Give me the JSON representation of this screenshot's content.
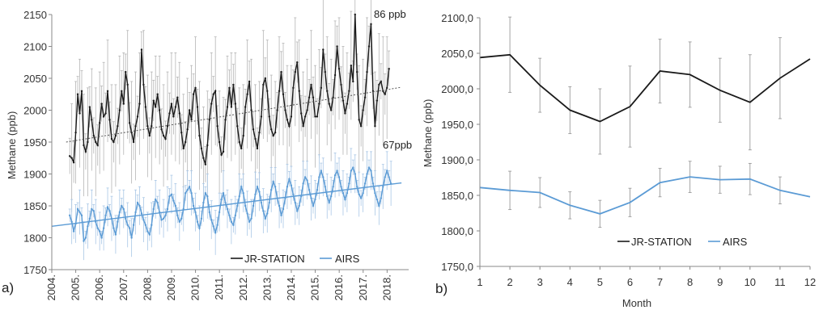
{
  "chart_data": [
    {
      "type": "line",
      "panel_label": "a)",
      "ylabel": "Methane (ppb)",
      "xlabel": "",
      "ylim": [
        1750,
        2150
      ],
      "y_ticks": [
        "1750",
        "1800",
        "1850",
        "1900",
        "1950",
        "2000",
        "2050",
        "2100",
        "2150"
      ],
      "xlim": [
        2004.0,
        2018.9
      ],
      "x_ticks": [
        "2004.",
        "2005.",
        "2006.",
        "2007.",
        "2008.",
        "2009.",
        "2010.",
        "2011.",
        "2012.",
        "2013.",
        "2014.",
        "2015.",
        "2016.",
        "2017.",
        "2018."
      ],
      "grid": false,
      "legend": "bottom-center",
      "annotations": [
        "86 ppb",
        "67ppb"
      ],
      "series": [
        {
          "name": "JR-STATION",
          "color": "#1a1a1a",
          "x_start": 2004.75,
          "step": 0.0833,
          "values": [
            1928,
            1925,
            1918,
            1965,
            2025,
            1995,
            2030,
            1945,
            1935,
            1950,
            2005,
            1985,
            1960,
            1950,
            1945,
            1980,
            2010,
            1990,
            1995,
            2030,
            1985,
            1955,
            1950,
            1960,
            1975,
            2000,
            2030,
            2010,
            2060,
            2040,
            1980,
            1965,
            1950,
            1975,
            1990,
            2010,
            2095,
            2040,
            2005,
            1975,
            1960,
            1975,
            2015,
            2005,
            2025,
            2000,
            1970,
            1960,
            1955,
            1975,
            1995,
            2010,
            1990,
            2005,
            2020,
            1995,
            1965,
            1940,
            1950,
            1970,
            2000,
            1985,
            2025,
            2035,
            2005,
            1960,
            1940,
            1925,
            1915,
            1945,
            1985,
            2010,
            2025,
            2030,
            1975,
            1950,
            1930,
            1935,
            1985,
            2005,
            2035,
            2005,
            2040,
            2010,
            1975,
            1950,
            1940,
            1960,
            2005,
            2025,
            2045,
            2000,
            1970,
            1955,
            1940,
            1965,
            1990,
            2040,
            2050,
            2030,
            1990,
            1970,
            1960,
            1965,
            2000,
            2030,
            2060,
            2025,
            2000,
            1985,
            1975,
            1990,
            2035,
            2060,
            2075,
            2030,
            1995,
            1975,
            1990,
            2000,
            2020,
            2040,
            2020,
            1990,
            1990,
            2010,
            2035,
            2095,
            2060,
            2030,
            2010,
            2000,
            2020,
            2055,
            2100,
            2065,
            2040,
            2015,
            1995,
            2010,
            2030,
            2070,
            2045,
            2150,
            2060,
            1985,
            1975,
            2000,
            2020,
            2060,
            2100,
            2135,
            2030,
            1975,
            2015,
            2040,
            2045,
            2030,
            2025,
            2035,
            2065
          ]
        },
        {
          "name": "AIRS",
          "color": "#5b9bd5",
          "x_start": 2004.75,
          "step": 0.0833,
          "values": [
            1835,
            1825,
            1810,
            1822,
            1845,
            1840,
            1835,
            1795,
            1800,
            1818,
            1830,
            1845,
            1842,
            1825,
            1815,
            1810,
            1800,
            1815,
            1835,
            1848,
            1842,
            1830,
            1815,
            1805,
            1825,
            1840,
            1850,
            1845,
            1830,
            1820,
            1815,
            1800,
            1820,
            1840,
            1855,
            1850,
            1838,
            1828,
            1820,
            1810,
            1805,
            1820,
            1845,
            1860,
            1855,
            1840,
            1828,
            1830,
            1835,
            1845,
            1865,
            1868,
            1858,
            1850,
            1835,
            1825,
            1830,
            1845,
            1870,
            1875,
            1880,
            1870,
            1850,
            1840,
            1825,
            1815,
            1830,
            1855,
            1870,
            1865,
            1840,
            1828,
            1818,
            1808,
            1820,
            1840,
            1860,
            1870,
            1855,
            1845,
            1835,
            1825,
            1820,
            1835,
            1850,
            1865,
            1880,
            1870,
            1850,
            1838,
            1825,
            1830,
            1850,
            1868,
            1880,
            1872,
            1855,
            1842,
            1830,
            1838,
            1855,
            1875,
            1888,
            1880,
            1862,
            1850,
            1835,
            1845,
            1862,
            1880,
            1892,
            1882,
            1868,
            1855,
            1842,
            1850,
            1865,
            1885,
            1895,
            1890,
            1875,
            1862,
            1850,
            1860,
            1875,
            1895,
            1905,
            1895,
            1880,
            1865,
            1855,
            1865,
            1880,
            1898,
            1905,
            1895,
            1880,
            1870,
            1860,
            1870,
            1885,
            1905,
            1910,
            1900,
            1880,
            1868,
            1862,
            1870,
            1885,
            1900,
            1910,
            1905,
            1885,
            1870,
            1860,
            1850,
            1862,
            1880,
            1895,
            1905,
            1895,
            1885
          ]
        }
      ],
      "trendlines": [
        {
          "series": "JR-STATION",
          "x": [
            2004.6,
            2018.6
          ],
          "y": [
            1950,
            2036
          ]
        },
        {
          "series": "AIRS",
          "x": [
            2004.0,
            2018.6
          ],
          "y": [
            1818,
            1886
          ]
        }
      ]
    },
    {
      "type": "line",
      "panel_label": "b)",
      "ylabel": "Methane (ppb)",
      "xlabel": "Month",
      "ylim": [
        1750,
        2100
      ],
      "y_ticks": [
        "1750,0",
        "1800,0",
        "1850,0",
        "1900,0",
        "1950,0",
        "2000,0",
        "2050,0",
        "2100,0"
      ],
      "x": [
        1,
        2,
        3,
        4,
        5,
        6,
        7,
        8,
        9,
        10,
        11,
        12
      ],
      "grid": false,
      "legend": "bottom-center",
      "series": [
        {
          "name": "JR-STATION",
          "color": "#1a1a1a",
          "values": [
            2044,
            2048,
            2005,
            1970,
            1954,
            1975,
            2025,
            2020,
            1998,
            1981,
            2015,
            2042
          ],
          "error": [
            0,
            53,
            38,
            33,
            46,
            57,
            45,
            46,
            45,
            67,
            57,
            0
          ]
        },
        {
          "name": "AIRS",
          "color": "#5b9bd5",
          "values": [
            1861,
            1857,
            1854,
            1836,
            1824,
            1840,
            1868,
            1876,
            1872,
            1873,
            1857,
            1848
          ],
          "error": [
            0,
            27,
            21,
            19,
            19,
            20,
            20,
            22,
            19,
            22,
            19,
            0
          ]
        }
      ]
    }
  ]
}
